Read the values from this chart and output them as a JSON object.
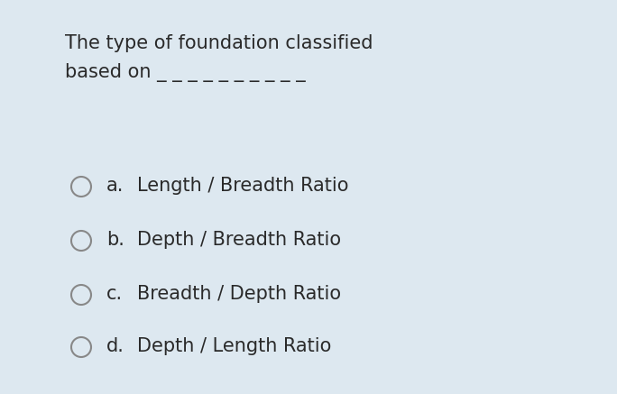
{
  "background_color": "#dde8f0",
  "text_color": "#2a2a2a",
  "circle_color": "#888888",
  "question_line1": "The type of foundation classified",
  "question_line2": "based on _ _ _ _ _ _ _ _ _ _",
  "options": [
    {
      "label": "a.",
      "text": "Length / Breadth Ratio"
    },
    {
      "label": "b.",
      "text": "Depth / Breadth Ratio"
    },
    {
      "label": "c.",
      "text": "Breadth / Depth Ratio"
    },
    {
      "label": "d.",
      "text": "Depth / Length Ratio"
    }
  ],
  "question_fontsize": 15,
  "option_fontsize": 15,
  "figsize": [
    6.84,
    4.37
  ],
  "dpi": 100
}
